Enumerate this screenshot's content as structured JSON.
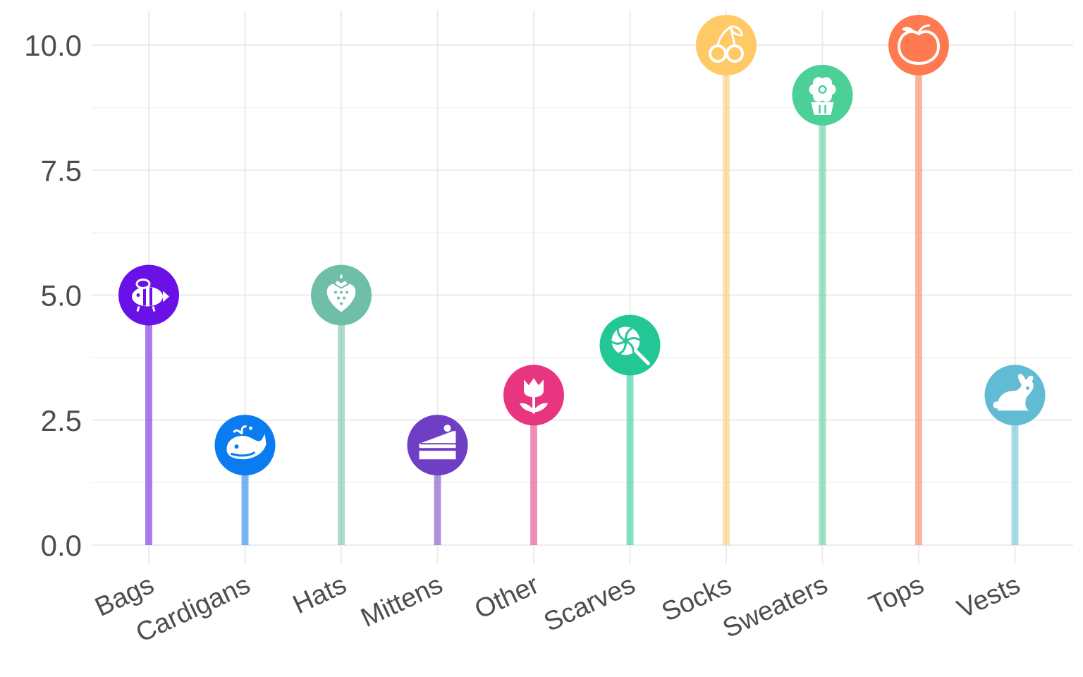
{
  "chart_data": {
    "type": "lollipop",
    "categories": [
      "Bags",
      "Cardigans",
      "Hats",
      "Mittens",
      "Other",
      "Scarves",
      "Socks",
      "Sweaters",
      "Tops",
      "Vests"
    ],
    "values": [
      5,
      2,
      5,
      2,
      3,
      4,
      10,
      9,
      10,
      3
    ],
    "colors": [
      "#6a11e8",
      "#0a7cf0",
      "#6fbfa8",
      "#6e3ec4",
      "#e8357f",
      "#22c795",
      "#ffc966",
      "#4dcf98",
      "#ff7a50",
      "#62bbd4"
    ],
    "icons": [
      "bee-icon",
      "whale-icon",
      "strawberry-icon",
      "cake-slice-icon",
      "tulip-icon",
      "lollipop-icon",
      "cherries-icon",
      "flower-pot-icon",
      "peach-icon",
      "rabbit-icon"
    ],
    "ylim": [
      0,
      10
    ],
    "yticks": [
      "0.0",
      "2.5",
      "5.0",
      "7.5",
      "10.0"
    ],
    "ytick_values": [
      0,
      2.5,
      5,
      7.5,
      10
    ],
    "title": "",
    "xlabel": "",
    "ylabel": "",
    "grid": true,
    "legend": "none"
  }
}
